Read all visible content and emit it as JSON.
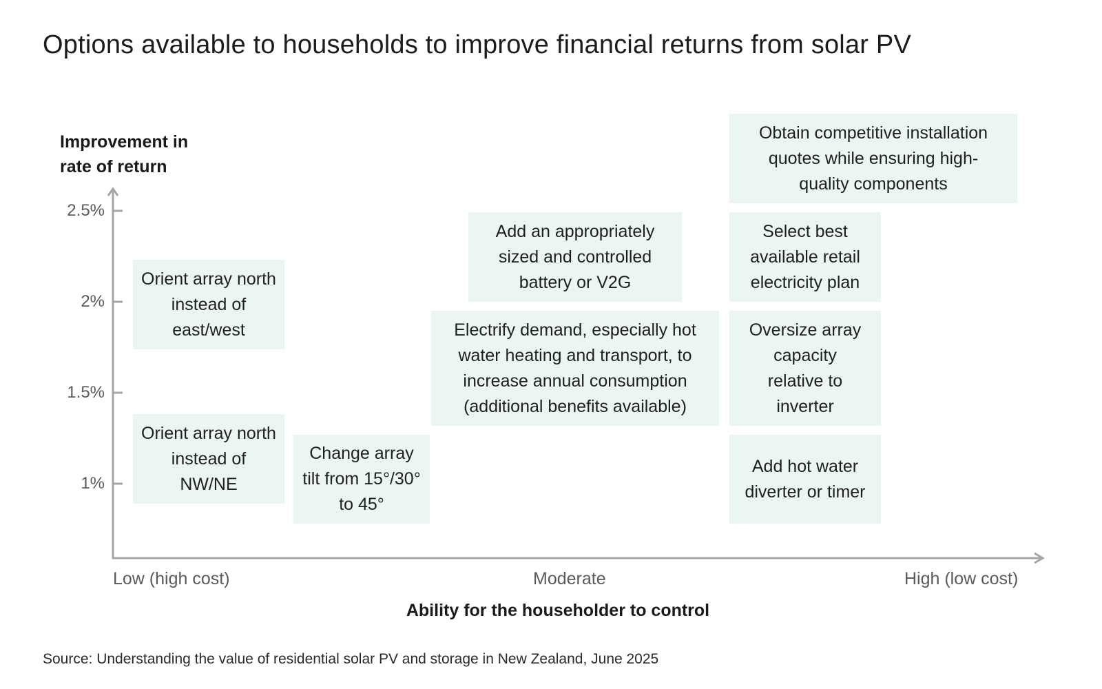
{
  "title": "Options available to households to improve financial returns from solar PV",
  "y_axis": {
    "label_line1": "Improvement in",
    "label_line2": "rate of return",
    "ticks": [
      "2.5%",
      "2%",
      "1.5%",
      "1%"
    ]
  },
  "x_axis": {
    "label": "Ability for the householder to control",
    "ticks": [
      "Low (high cost)",
      "Moderate",
      "High (low cost)"
    ]
  },
  "options": [
    {
      "text": "Orient array north instead of east/west"
    },
    {
      "text": "Orient array north instead of NW/NE"
    },
    {
      "text": "Change array tilt from 15°/30° to 45°"
    },
    {
      "text": "Add an appropriately sized and controlled battery or V2G"
    },
    {
      "text": "Electrify demand, especially hot water heating and transport, to increase annual consumption (additional benefits available)"
    },
    {
      "text": "Obtain competitive installation quotes while ensuring high-quality components"
    },
    {
      "text": "Select best available retail electricity plan"
    },
    {
      "text": "Oversize array capacity relative to inverter"
    },
    {
      "text": "Add hot water diverter or timer"
    }
  ],
  "source": "Source: Understanding the value of residential solar PV and storage in New Zealand, June 2025",
  "colors": {
    "box_fill": "#ebf6f4",
    "axis": "#a6a6a6"
  }
}
